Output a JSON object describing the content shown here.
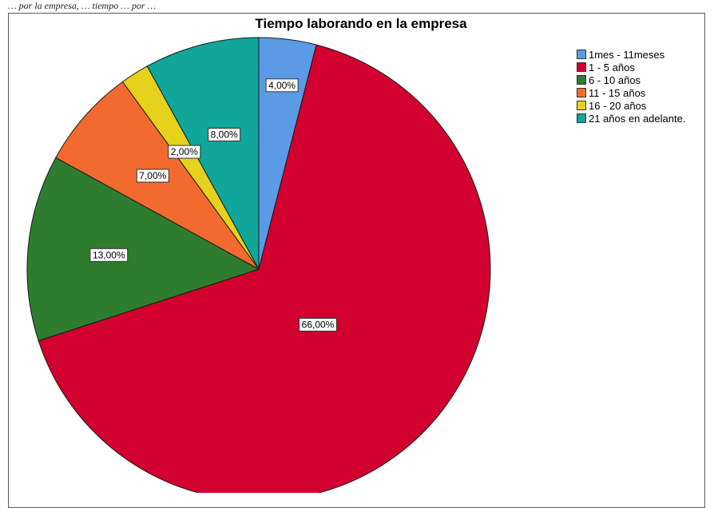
{
  "caption": "… por la empresa, … tiempo … por …",
  "chart_data": {
    "type": "pie",
    "title": "Tiempo laborando en la empresa",
    "legend_position": "right",
    "series": [
      {
        "name": "1mes - 11meses",
        "value": 4,
        "label": "4,00%",
        "color": "#5b9be6"
      },
      {
        "name": "1 - 5 años",
        "value": 66,
        "label": "66,00%",
        "color": "#d2002e"
      },
      {
        "name": "6 - 10 años",
        "value": 13,
        "label": "13,00%",
        "color": "#2e7d2e"
      },
      {
        "name": "11 - 15 años",
        "value": 7,
        "label": "7,00%",
        "color": "#f26a2d"
      },
      {
        "name": "16 - 20 años",
        "value": 2,
        "label": "2,00%",
        "color": "#e6d21d"
      },
      {
        "name": "21 años en adelante.",
        "value": 8,
        "label": "8,00%",
        "color": "#10a69a"
      }
    ]
  }
}
